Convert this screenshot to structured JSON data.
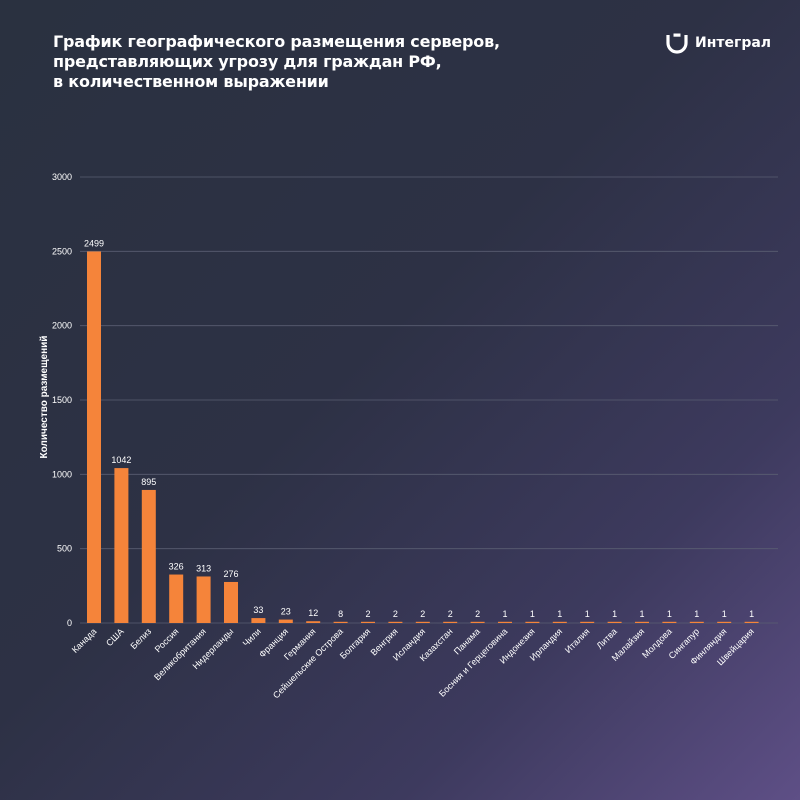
{
  "header": {
    "title_lines": [
      "График географического размещения серверов,",
      "представляющих угрозу для граждан РФ,",
      "в количественном выражении"
    ],
    "brand": {
      "name": "Интеграл",
      "icon": "integral-logo-icon"
    }
  },
  "colors": {
    "bar": "#f5843a",
    "gridline": "#5a5e72",
    "text": "#ffffff"
  },
  "chart_data": {
    "type": "bar",
    "title": "",
    "xlabel": "",
    "ylabel": "Количество размещений",
    "ylim": [
      0,
      3000
    ],
    "yticks": [
      0,
      500,
      1000,
      1500,
      2000,
      2500,
      3000
    ],
    "grid": true,
    "data_labels": true,
    "categories": [
      "Канада",
      "США",
      "Белиз",
      "Россия",
      "Великобритания",
      "Нидерланды",
      "Чили",
      "Франция",
      "Германия",
      "Сейшельские Острова",
      "Болгария",
      "Венгрия",
      "Исландия",
      "Казахстан",
      "Панама",
      "Босния и Герцеговина",
      "Индонезия",
      "Ирландия",
      "Италия",
      "Литва",
      "Малайзия",
      "Молдова",
      "Сингапур",
      "Финляндия",
      "Швейцария"
    ],
    "values": [
      2499,
      1042,
      895,
      326,
      313,
      276,
      33,
      23,
      12,
      8,
      2,
      2,
      2,
      2,
      2,
      1,
      1,
      1,
      1,
      1,
      1,
      1,
      1,
      1,
      1
    ]
  }
}
